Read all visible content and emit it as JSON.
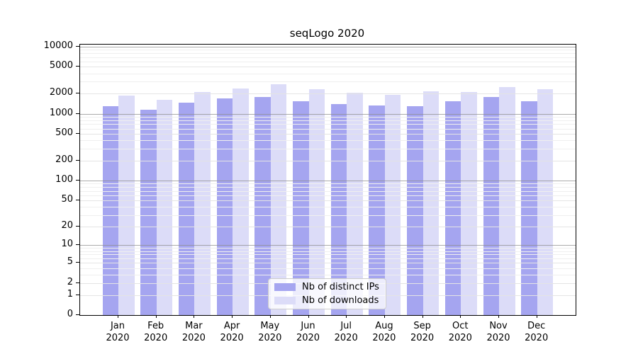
{
  "chart_data": {
    "type": "bar",
    "title": "seqLogo 2020",
    "categories": [
      "Jan",
      "Feb",
      "Mar",
      "Apr",
      "May",
      "Jun",
      "Jul",
      "Aug",
      "Sep",
      "Oct",
      "Nov",
      "Dec"
    ],
    "category_year": "2020",
    "series": [
      {
        "name": "Nb of distinct IPs",
        "color": "#a5a5f0",
        "values": [
          1300,
          1140,
          1450,
          1700,
          1790,
          1550,
          1390,
          1340,
          1300,
          1530,
          1790,
          1530
        ]
      },
      {
        "name": "Nb of downloads",
        "color": "#dcdcf8",
        "values": [
          1860,
          1620,
          2100,
          2380,
          2760,
          2320,
          2030,
          1900,
          2140,
          2120,
          2490,
          2330
        ]
      }
    ],
    "yticks": [
      0,
      1,
      2,
      5,
      10,
      20,
      50,
      100,
      200,
      500,
      1000,
      2000,
      5000,
      10000
    ],
    "scale": "log1p",
    "ylim": [
      0,
      10800
    ],
    "xlabel": "",
    "ylabel": "",
    "grid": true,
    "legend_position": "bottom-center",
    "colors": {
      "major_power_gridline": "#8f8f8f",
      "major_gridline": "#e4e4e4",
      "minor_gridline": "#efefef",
      "frame": "#000000"
    }
  }
}
